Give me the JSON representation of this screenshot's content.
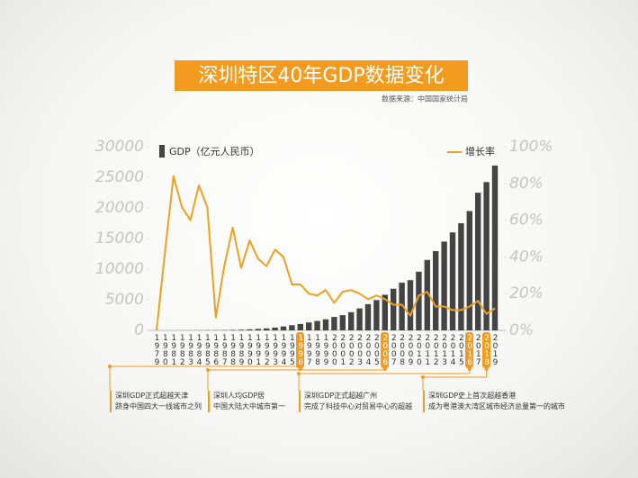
{
  "chart_data": {
    "type": "bar_line",
    "title": "深圳特区40年GDP数据变化",
    "source": "数据来源：中国国家统计局",
    "categories": [
      "1979",
      "1980",
      "1981",
      "1982",
      "1983",
      "1984",
      "1985",
      "1986",
      "1987",
      "1988",
      "1989",
      "1990",
      "1991",
      "1992",
      "1993",
      "1994",
      "1995",
      "1996",
      "1997",
      "1998",
      "1999",
      "2000",
      "2001",
      "2002",
      "2003",
      "2004",
      "2005",
      "2006",
      "2007",
      "2008",
      "2009",
      "2010",
      "2011",
      "2012",
      "2013",
      "2014",
      "2015",
      "2016",
      "2017",
      "2018",
      "2019"
    ],
    "series": [
      {
        "name": "GDP（亿元人民币）",
        "type": "bar",
        "color": "#444444",
        "values": [
          1.96,
          2.7,
          4.96,
          8.26,
          13.1,
          23.4,
          39,
          41.6,
          55.9,
          86.98,
          115.7,
          171.7,
          236.7,
          317.3,
          453.1,
          634.7,
          842.5,
          1048.4,
          1297.4,
          1534.7,
          1804,
          2187,
          2482,
          2970,
          3586,
          4282,
          4951,
          5814,
          6802,
          7787,
          8201,
          9582,
          11506,
          12950,
          14500,
          16002,
          17503,
          19493,
          22490,
          24222,
          26927
        ]
      },
      {
        "name": "增长率",
        "type": "line",
        "axis": "y2",
        "color": "#f0a020",
        "values": [
          0,
          43,
          84,
          67,
          60,
          79,
          67,
          7,
          35,
          56,
          34,
          49,
          39,
          35,
          44,
          40,
          25,
          25,
          20,
          19,
          22,
          15,
          21,
          22,
          20,
          17,
          19,
          17,
          14,
          14,
          8,
          19,
          21,
          13,
          13,
          11,
          11,
          13,
          16,
          9,
          12
        ]
      }
    ],
    "ylim": [
      0,
      30000
    ],
    "yticks": [
      0,
      5000,
      10000,
      15000,
      20000,
      25000,
      30000
    ],
    "y2lim": [
      0,
      100
    ],
    "y2ticks": [
      {
        "value": 0,
        "label": "0%"
      },
      {
        "value": 20,
        "label": "20%"
      },
      {
        "value": 40,
        "label": "40%"
      },
      {
        "value": 60,
        "label": "60%"
      },
      {
        "value": 80,
        "label": "80%"
      },
      {
        "value": 100,
        "label": "100%"
      }
    ],
    "highlight": [
      17,
      27,
      37,
      39
    ],
    "highlight_color": "#f39b1f",
    "annotations": [
      {
        "lines": [
          "深圳GDP正式超越天津",
          "跻身中国四大一线城市之列"
        ]
      },
      {
        "lines": [
          "深圳人均GDP居",
          "中国大陆大中城市第一"
        ]
      },
      {
        "lines": [
          "深圳GDP正式超越广州",
          "完成了科技中心对贸易中心的超越"
        ]
      },
      {
        "lines": [
          "深圳GDP史上首次超越香港",
          "成为粤港澳大湾区城市经济总量第一的城市"
        ]
      }
    ]
  }
}
